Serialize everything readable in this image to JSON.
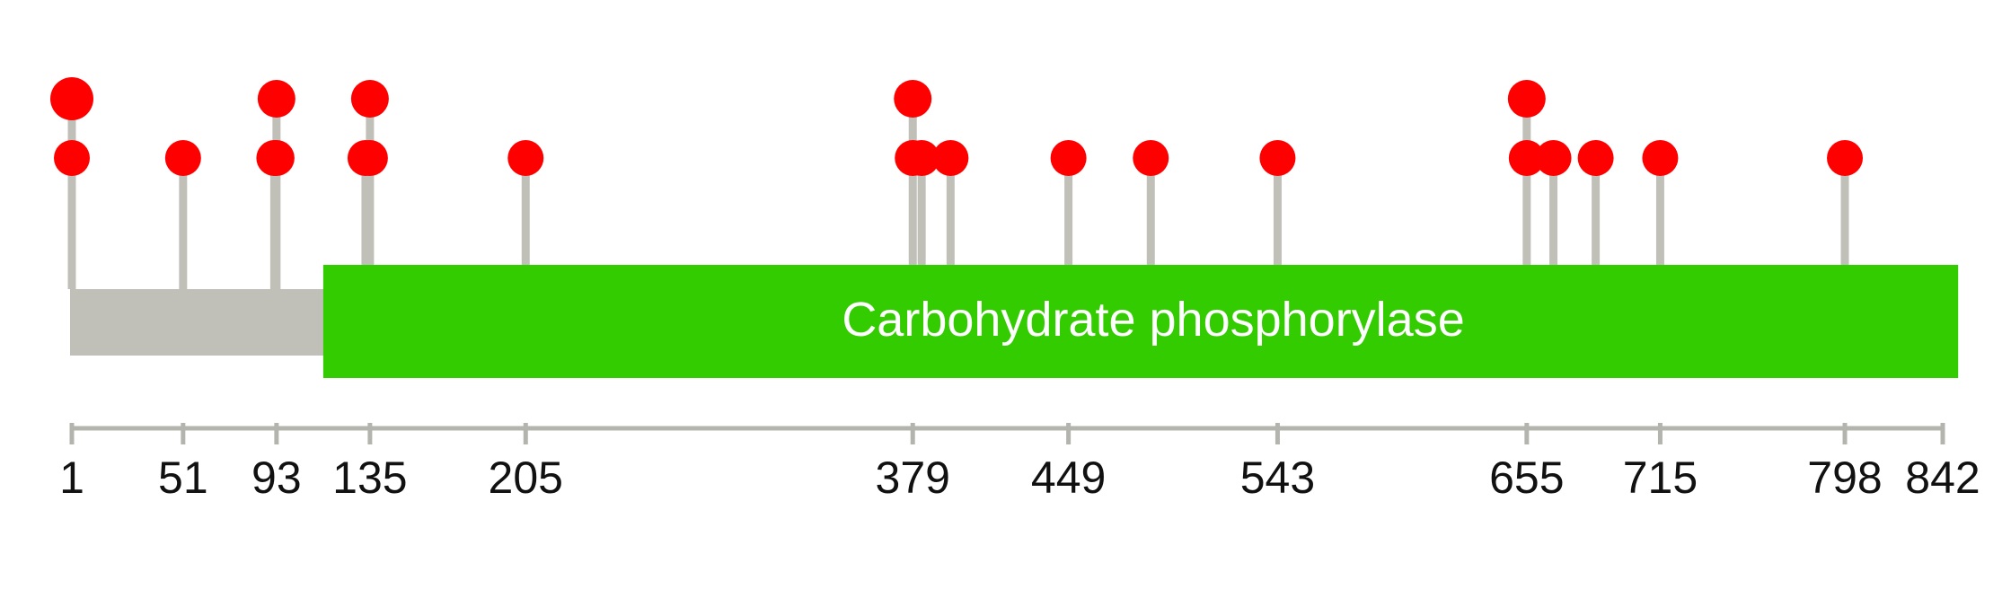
{
  "protein": {
    "length": 842,
    "backbone_color": "#c0c0b8",
    "stem_color": "#c0c0b8",
    "marker_color": "#ff0000"
  },
  "domains": [
    {
      "label": "Carbohydrate phosphorylase",
      "start": 135,
      "end": 834,
      "color": "#33cc00"
    }
  ],
  "sites": [
    {
      "pos": 1,
      "count": 2
    },
    {
      "pos": 51,
      "count": 1
    },
    {
      "pos": 92,
      "count": 1
    },
    {
      "pos": 93,
      "count": 2
    },
    {
      "pos": 133,
      "count": 1
    },
    {
      "pos": 135,
      "count": 2
    },
    {
      "pos": 205,
      "count": 1
    },
    {
      "pos": 379,
      "count": 2
    },
    {
      "pos": 383,
      "count": 1
    },
    {
      "pos": 396,
      "count": 1
    },
    {
      "pos": 449,
      "count": 1
    },
    {
      "pos": 486,
      "count": 1
    },
    {
      "pos": 543,
      "count": 1
    },
    {
      "pos": 655,
      "count": 2
    },
    {
      "pos": 667,
      "count": 1
    },
    {
      "pos": 686,
      "count": 1
    },
    {
      "pos": 715,
      "count": 1
    },
    {
      "pos": 798,
      "count": 1
    }
  ],
  "axis": {
    "ticks": [
      1,
      51,
      93,
      135,
      205,
      379,
      449,
      543,
      655,
      715,
      798,
      842
    ],
    "tick_labels": [
      "1",
      "51",
      "93",
      "135",
      "205",
      "379",
      "449",
      "543",
      "655",
      "715",
      "798",
      "842"
    ]
  }
}
